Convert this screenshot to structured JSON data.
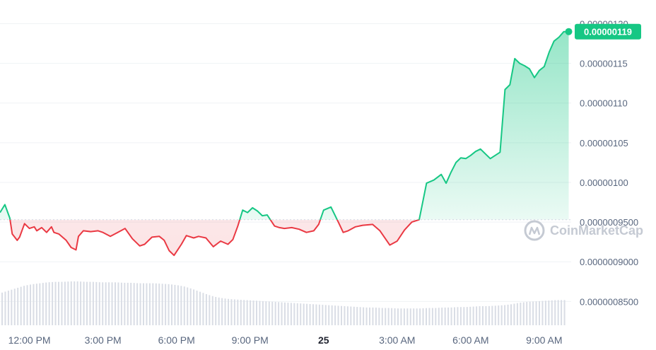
{
  "watermark": "CoinMarketCap",
  "current_price": "0.00000119",
  "colors": {
    "up": "#16c784",
    "down": "#ea3943",
    "grid": "#eff2f5",
    "baseline": "#cfd6e4",
    "volume": "#d9dde5",
    "label": "#58667e",
    "watermark": "#c5cad3"
  },
  "chart_data": {
    "type": "line",
    "baseline_value": 9.53e-07,
    "y_axis": {
      "ticks": [
        1.2e-06,
        1.15e-06,
        1.1e-06,
        1.05e-06,
        1e-06,
        9.5e-07,
        9e-07,
        8.5e-07
      ],
      "tick_labels": [
        "0.00000120",
        "0.00000115",
        "0.00000110",
        "0.00000105",
        "0.00000100",
        "0.0000009500",
        "0.0000009000",
        "0.0000008500"
      ],
      "range": [
        8.2e-07,
        1.212e-06
      ]
    },
    "x_axis": {
      "tick_labels": [
        "12:00 PM",
        "3:00 PM",
        "6:00 PM",
        "9:00 PM",
        "25",
        "3:00 AM",
        "6:00 AM",
        "9:00 AM"
      ],
      "tick_hours": [
        12,
        15,
        18,
        21,
        24,
        27,
        30,
        33
      ],
      "range_hours": [
        10.8,
        34.1
      ]
    },
    "series": [
      {
        "x_hours": [
          10.8,
          11.0,
          11.2,
          11.3,
          11.5,
          11.6,
          11.8,
          12.0,
          12.2,
          12.3,
          12.5,
          12.7,
          12.9,
          13.0,
          13.2,
          13.5,
          13.7,
          13.9,
          14.0,
          14.2,
          14.5,
          14.8,
          15.0,
          15.3,
          15.6,
          15.9,
          16.2,
          16.5,
          16.7,
          17.0,
          17.3,
          17.5,
          17.7,
          17.9,
          18.2,
          18.4,
          18.7,
          18.9,
          19.2,
          19.5,
          19.8,
          20.1,
          20.3,
          20.5,
          20.7,
          20.9,
          21.1,
          21.3,
          21.5,
          21.7,
          22.0,
          22.2,
          22.4,
          22.7,
          23.0,
          23.3,
          23.6,
          23.8,
          24.0,
          24.3,
          24.6,
          24.8,
          25.0,
          25.3,
          25.6,
          26.0,
          26.3,
          26.7,
          27.0,
          27.3,
          27.6,
          27.9,
          28.2,
          28.5,
          28.8,
          29.0,
          29.2,
          29.4,
          29.6,
          29.8,
          30.0,
          30.2,
          30.4,
          30.6,
          30.8,
          31.0,
          31.2,
          31.4,
          31.6,
          31.8,
          32.0,
          32.2,
          32.4,
          32.6,
          32.8,
          33.0,
          33.2,
          33.4,
          33.6,
          33.8,
          34.0
        ],
        "values": [
          9.62e-07,
          9.72e-07,
          9.55e-07,
          9.35e-07,
          9.27e-07,
          9.31e-07,
          9.48e-07,
          9.42e-07,
          9.44e-07,
          9.39e-07,
          9.43e-07,
          9.37e-07,
          9.44e-07,
          9.37e-07,
          9.35e-07,
          9.27e-07,
          9.18e-07,
          9.15e-07,
          9.32e-07,
          9.39e-07,
          9.38e-07,
          9.39e-07,
          9.37e-07,
          9.32e-07,
          9.37e-07,
          9.42e-07,
          9.29e-07,
          9.2e-07,
          9.22e-07,
          9.31e-07,
          9.32e-07,
          9.27e-07,
          9.14e-07,
          9.08e-07,
          9.22e-07,
          9.33e-07,
          9.3e-07,
          9.32e-07,
          9.3e-07,
          9.19e-07,
          9.26e-07,
          9.22e-07,
          9.28e-07,
          9.45e-07,
          9.65e-07,
          9.62e-07,
          9.68e-07,
          9.64e-07,
          9.58e-07,
          9.59e-07,
          9.45e-07,
          9.43e-07,
          9.42e-07,
          9.43e-07,
          9.41e-07,
          9.37e-07,
          9.39e-07,
          9.47e-07,
          9.65e-07,
          9.69e-07,
          9.5e-07,
          9.37e-07,
          9.39e-07,
          9.44e-07,
          9.46e-07,
          9.47e-07,
          9.39e-07,
          9.21e-07,
          9.26e-07,
          9.4e-07,
          9.5e-07,
          9.53e-07,
          9.99e-07,
          1.003e-06,
          1.01e-06,
          9.99e-07,
          1.013e-06,
          1.025e-06,
          1.031e-06,
          1.03e-06,
          1.034e-06,
          1.039e-06,
          1.042e-06,
          1.036e-06,
          1.03e-06,
          1.034e-06,
          1.038e-06,
          1.117e-06,
          1.123e-06,
          1.156e-06,
          1.15e-06,
          1.147e-06,
          1.143e-06,
          1.132e-06,
          1.141e-06,
          1.146e-06,
          1.164e-06,
          1.178e-06,
          1.183e-06,
          1.19e-06,
          1.19e-06
        ]
      }
    ],
    "volume_relative": [
      0.7,
      0.75,
      0.8,
      0.85,
      0.88,
      0.9,
      0.92,
      0.93,
      0.93,
      0.94,
      0.94,
      0.93,
      0.93,
      0.92,
      0.92,
      0.92,
      0.91,
      0.91,
      0.9,
      0.9,
      0.9,
      0.89,
      0.88,
      0.86,
      0.83,
      0.78,
      0.72,
      0.66,
      0.61,
      0.58,
      0.56,
      0.55,
      0.54,
      0.53,
      0.52,
      0.51,
      0.5,
      0.49,
      0.48,
      0.47,
      0.46,
      0.45,
      0.44,
      0.43,
      0.42,
      0.41,
      0.4,
      0.39,
      0.38,
      0.38,
      0.37,
      0.37,
      0.36,
      0.36,
      0.36,
      0.36,
      0.37,
      0.37,
      0.38,
      0.38,
      0.39,
      0.39,
      0.4,
      0.41,
      0.41,
      0.42,
      0.43,
      0.45,
      0.48,
      0.5,
      0.51,
      0.52,
      0.53,
      0.54,
      0.54
    ]
  }
}
